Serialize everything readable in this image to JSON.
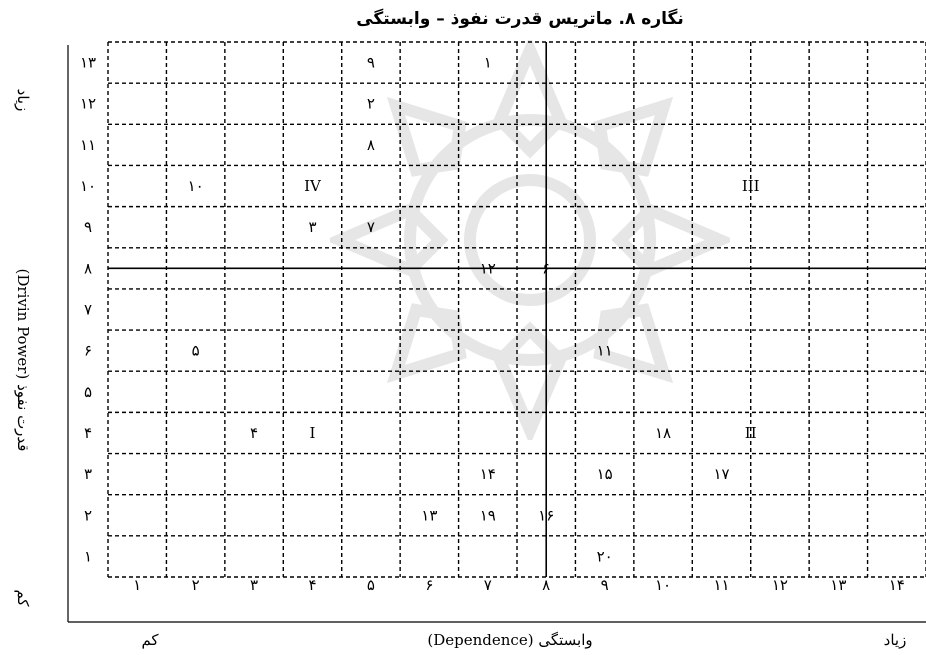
{
  "chart_data": {
    "type": "scatter",
    "title": "نگاره ۸. ماتریس قدرت نفوذ – وابستگی",
    "xlabel": "وابستگی (Dependence)",
    "x_low_label": "کم",
    "x_high_label": "زیاد",
    "ylabel": "قدرت نفوذ (Drivin Power)",
    "y_high_label": "زیاد",
    "y_low_label": "کم",
    "x_tick_labels": [
      "۱",
      "۲",
      "۳",
      "۴",
      "۵",
      "۶",
      "۷",
      "۸",
      "۹",
      "۱۰",
      "۱۱",
      "۱۲",
      "۱۳",
      "۱۴"
    ],
    "y_tick_labels": [
      "۱",
      "۲",
      "۳",
      "۴",
      "۵",
      "۶",
      "۷",
      "۸",
      "۹",
      "۱۰",
      "۱۱",
      "۱۲",
      "۱۳"
    ],
    "xlim": [
      0,
      14
    ],
    "ylim": [
      0,
      13
    ],
    "divider_x": 7.5,
    "divider_y": 7.5,
    "grid": "dashed",
    "quadrant_labels": [
      {
        "label": "IV",
        "x": 4,
        "y": 10
      },
      {
        "label": "III",
        "x": 11.5,
        "y": 10
      },
      {
        "label": "I",
        "x": 4,
        "y": 4
      },
      {
        "label": "II",
        "x": 11.5,
        "y": 4
      }
    ],
    "points": [
      {
        "label": "۹",
        "x": 5,
        "y": 13
      },
      {
        "label": "۱",
        "x": 7,
        "y": 13
      },
      {
        "label": "۲",
        "x": 5,
        "y": 12
      },
      {
        "label": "۸",
        "x": 5,
        "y": 11
      },
      {
        "label": "۱۰",
        "x": 2,
        "y": 10
      },
      {
        "label": "۳",
        "x": 4,
        "y": 9
      },
      {
        "label": "۷",
        "x": 5,
        "y": 9
      },
      {
        "label": "۱۲",
        "x": 7,
        "y": 8
      },
      {
        "label": "۶",
        "x": 8,
        "y": 8
      },
      {
        "label": "۵",
        "x": 2,
        "y": 6
      },
      {
        "label": "۱۱",
        "x": 9,
        "y": 6
      },
      {
        "label": "۴",
        "x": 3,
        "y": 4
      },
      {
        "label": "۱۸",
        "x": 10,
        "y": 4
      },
      {
        "label": "۱۴",
        "x": 7,
        "y": 3
      },
      {
        "label": "۱۵",
        "x": 9,
        "y": 3
      },
      {
        "label": "۱۷",
        "x": 11,
        "y": 3
      },
      {
        "label": "۱۳",
        "x": 6,
        "y": 2
      },
      {
        "label": "۱۹",
        "x": 7,
        "y": 2
      },
      {
        "label": "۱۶",
        "x": 8,
        "y": 2
      },
      {
        "label": "۲۰",
        "x": 9,
        "y": 1
      }
    ]
  }
}
